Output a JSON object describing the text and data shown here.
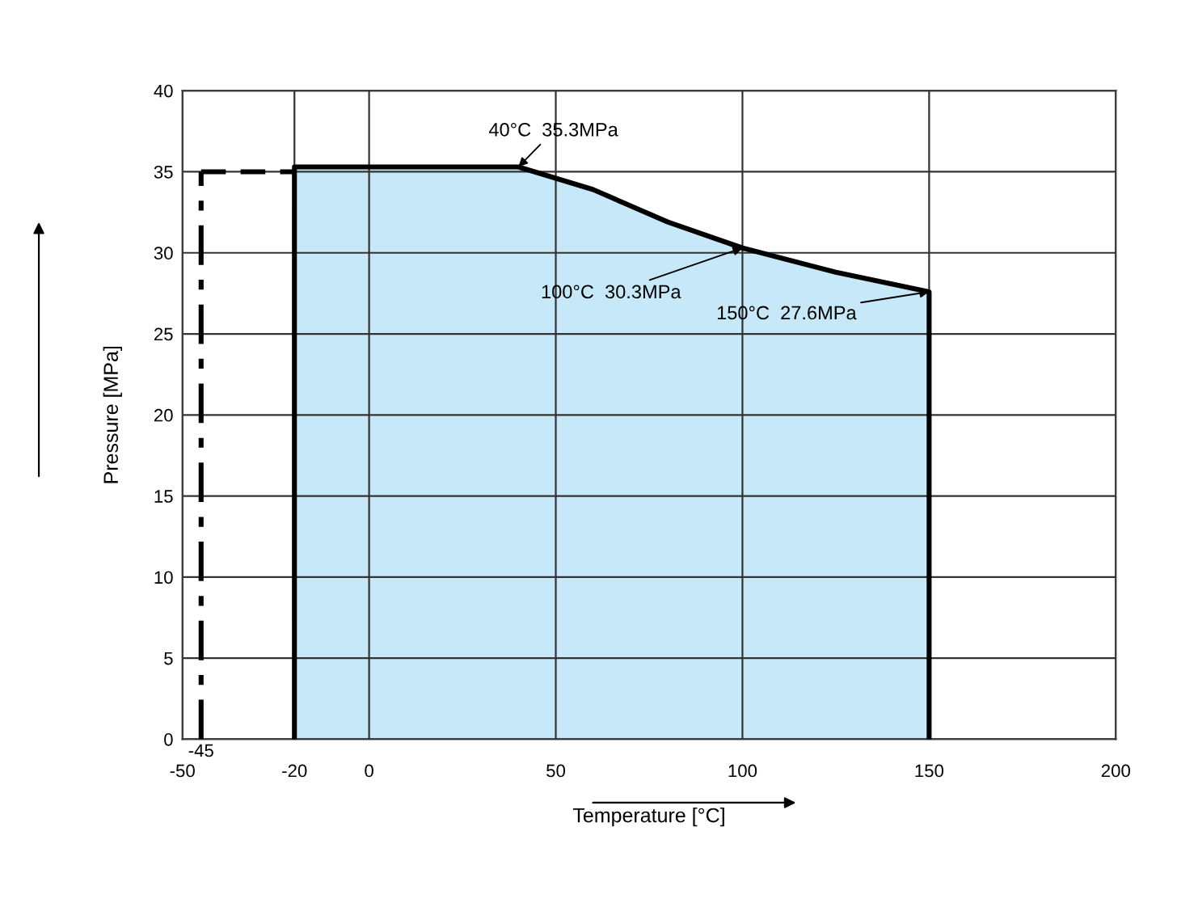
{
  "chart_data": {
    "type": "area",
    "xlabel": "Temperature [°C]",
    "ylabel": "Pressure [MPa]",
    "series": [
      {
        "color": "#c6e8f8",
        "x": [
          -20,
          40,
          60,
          80,
          100,
          125,
          150
        ],
        "values": [
          35.3,
          35.3,
          33.9,
          31.9,
          30.3,
          28.8,
          27.6
        ]
      },
      {
        "type": "line",
        "color": "#000000",
        "line_style": "dashdot",
        "x": [
          -45,
          -45
        ],
        "values": [
          0,
          35
        ]
      },
      {
        "type": "line",
        "color": "#000000",
        "line_style": "dashed",
        "x": [
          -45,
          -20
        ],
        "values": [
          35,
          35
        ]
      }
    ],
    "xlim": [
      -50,
      200
    ],
    "xticks": [
      -50,
      -20,
      0,
      50,
      100,
      150,
      200
    ],
    "ylim": [
      0,
      40
    ],
    "yticks": [
      0,
      5,
      10,
      15,
      20,
      25,
      30,
      35,
      40
    ],
    "grid": true,
    "annotations": [
      {
        "text": "40°C  35.3MPa",
        "x": 40,
        "y": 35.3
      },
      {
        "text": "100°C  30.3MPa",
        "x": 100,
        "y": 30.3
      },
      {
        "text": "150°C  27.6MPa",
        "x": 150,
        "y": 27.6
      },
      {
        "text": "-45",
        "x": -45,
        "y": 0
      }
    ]
  }
}
